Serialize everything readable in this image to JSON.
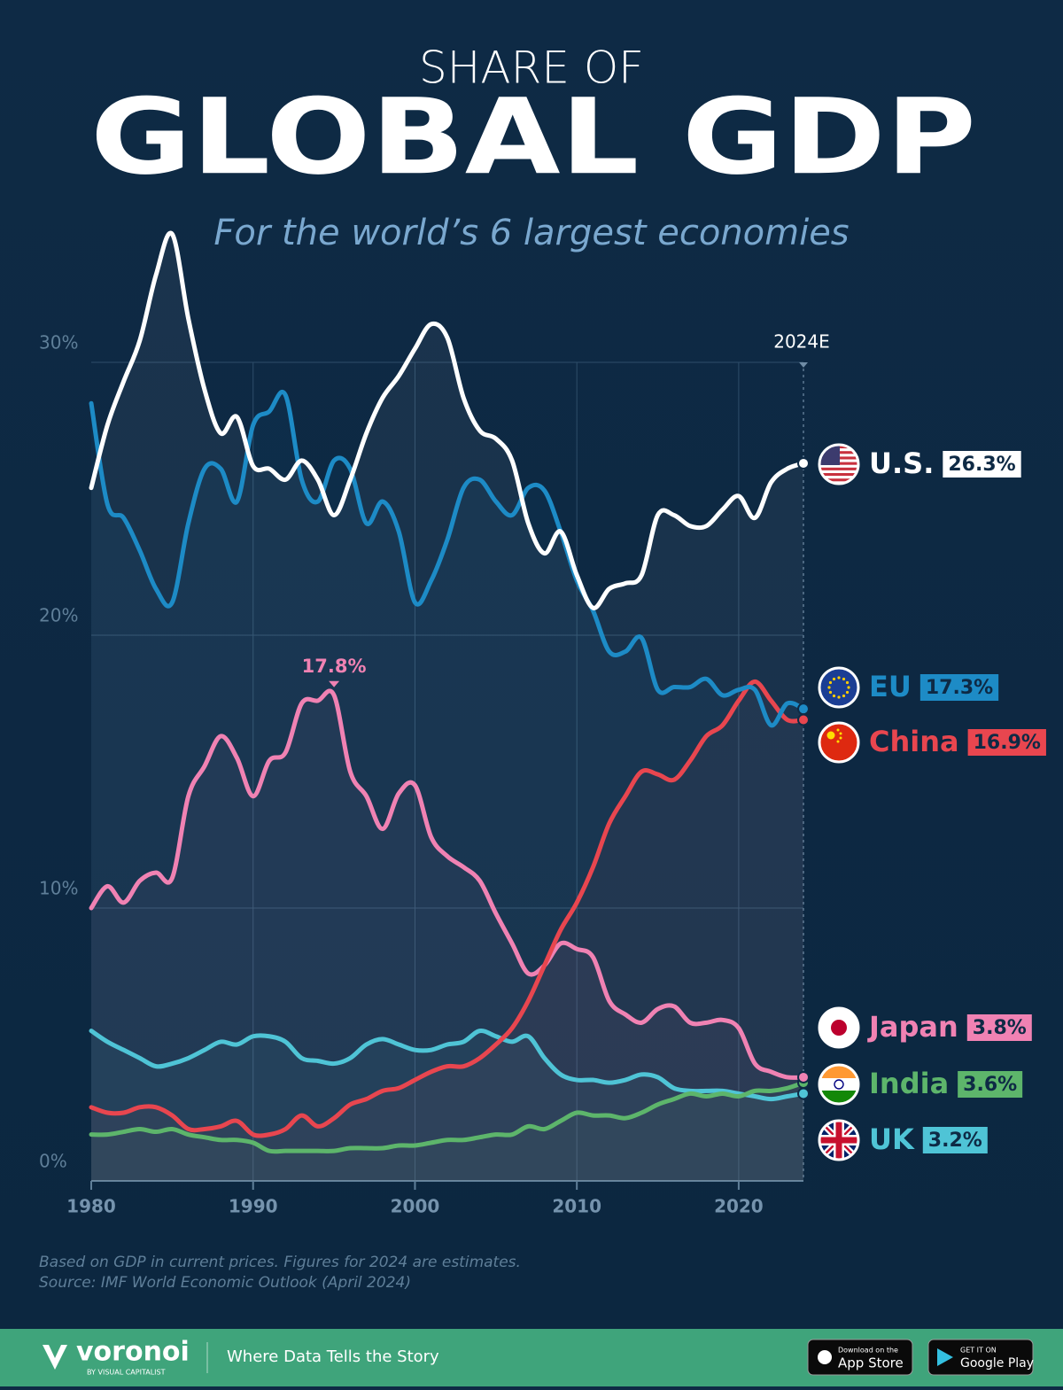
{
  "chart_data": {
    "type": "line",
    "title_top": "SHARE OF",
    "title": "GLOBAL GDP",
    "subtitle": "For the world’s 6 largest economies",
    "x": [
      1980,
      1981,
      1982,
      1983,
      1984,
      1985,
      1986,
      1987,
      1988,
      1989,
      1990,
      1991,
      1992,
      1993,
      1994,
      1995,
      1996,
      1997,
      1998,
      1999,
      2000,
      2001,
      2002,
      2003,
      2004,
      2005,
      2006,
      2007,
      2008,
      2009,
      2010,
      2011,
      2012,
      2013,
      2014,
      2015,
      2016,
      2017,
      2018,
      2019,
      2020,
      2021,
      2022,
      2023,
      2024
    ],
    "xlim": [
      1980,
      2024
    ],
    "xticks": [
      1980,
      1990,
      2000,
      2010,
      2020
    ],
    "ylim": [
      0,
      30
    ],
    "yticks": [
      {
        "value": 0,
        "label": "0%"
      },
      {
        "value": 10,
        "label": "10%"
      },
      {
        "value": 20,
        "label": "20%"
      },
      {
        "value": 30,
        "label": "30%"
      }
    ],
    "grid": true,
    "annotations": [
      {
        "x": 2024,
        "text": "2024E"
      }
    ],
    "series": [
      {
        "name": "U.S.",
        "color": "#ffffff",
        "values": [
          25.4,
          27.7,
          29.3,
          30.8,
          33.2,
          34.7,
          31.6,
          29.0,
          27.4,
          28.0,
          26.2,
          26.1,
          25.7,
          26.4,
          25.7,
          24.4,
          25.7,
          27.4,
          28.7,
          29.5,
          30.5,
          31.4,
          30.9,
          28.7,
          27.5,
          27.2,
          26.4,
          24.1,
          23.0,
          23.8,
          22.2,
          21.0,
          21.7,
          21.9,
          22.2,
          24.4,
          24.4,
          24.0,
          24.0,
          24.6,
          25.1,
          24.3,
          25.6,
          26.1,
          26.3
        ],
        "value_labels": [
          null,
          null,
          null,
          null,
          null,
          null,
          null,
          null,
          null,
          null,
          null,
          null,
          null,
          null,
          null,
          null,
          null,
          null,
          null,
          null,
          null,
          null,
          null,
          null,
          null,
          null,
          null,
          null,
          null,
          null,
          null,
          null,
          null,
          null,
          null,
          null,
          null,
          null,
          null,
          null,
          null,
          null,
          null,
          null,
          "26.3%"
        ]
      },
      {
        "name": "EU",
        "color": "#1d8bc6",
        "values": [
          28.5,
          24.8,
          24.3,
          23.1,
          21.7,
          21.2,
          24.1,
          26.1,
          26.1,
          24.9,
          27.7,
          28.2,
          28.8,
          25.7,
          24.9,
          26.4,
          26.1,
          24.1,
          24.9,
          23.8,
          21.2,
          22.0,
          23.5,
          25.4,
          25.7,
          24.9,
          24.4,
          25.4,
          25.3,
          23.8,
          22.0,
          20.9,
          19.4,
          19.4,
          19.9,
          18.0,
          18.1,
          18.1,
          18.4,
          17.8,
          18.0,
          18.0,
          16.7,
          17.5,
          17.3
        ],
        "value_labels": [
          null,
          null,
          null,
          null,
          null,
          null,
          null,
          null,
          null,
          null,
          null,
          null,
          null,
          null,
          null,
          null,
          null,
          null,
          null,
          null,
          null,
          null,
          null,
          null,
          null,
          null,
          null,
          null,
          null,
          null,
          null,
          null,
          null,
          null,
          null,
          null,
          null,
          null,
          null,
          null,
          null,
          null,
          null,
          null,
          "17.3%"
        ]
      },
      {
        "name": "China",
        "color": "#e8464f",
        "values": [
          2.7,
          2.5,
          2.5,
          2.7,
          2.7,
          2.4,
          1.9,
          1.9,
          2.0,
          2.2,
          1.7,
          1.7,
          1.9,
          2.4,
          2.0,
          2.3,
          2.8,
          3.0,
          3.3,
          3.4,
          3.7,
          4.0,
          4.2,
          4.2,
          4.5,
          5.0,
          5.6,
          6.6,
          7.9,
          9.2,
          10.2,
          11.5,
          13.1,
          14.1,
          15.0,
          14.9,
          14.7,
          15.4,
          16.3,
          16.7,
          17.6,
          18.3,
          17.6,
          16.9,
          16.9
        ],
        "value_labels": [
          null,
          null,
          null,
          null,
          null,
          null,
          null,
          null,
          null,
          null,
          null,
          null,
          null,
          null,
          null,
          null,
          null,
          null,
          null,
          null,
          null,
          null,
          null,
          null,
          null,
          null,
          null,
          null,
          null,
          null,
          null,
          null,
          null,
          null,
          null,
          null,
          null,
          null,
          null,
          null,
          null,
          null,
          null,
          null,
          "16.9%"
        ]
      },
      {
        "name": "Japan",
        "color": "#f082b3",
        "values": [
          10.0,
          10.8,
          10.2,
          11.0,
          11.3,
          11.1,
          14.1,
          15.2,
          16.3,
          15.5,
          14.1,
          15.4,
          15.7,
          17.5,
          17.6,
          17.8,
          15.0,
          14.1,
          12.9,
          14.2,
          14.5,
          12.6,
          11.9,
          11.5,
          11.0,
          9.8,
          8.7,
          7.6,
          7.9,
          8.7,
          8.5,
          8.2,
          6.6,
          6.1,
          5.8,
          6.3,
          6.4,
          5.8,
          5.8,
          5.9,
          5.6,
          4.3,
          4.0,
          3.8,
          3.8
        ],
        "value_labels": [
          null,
          null,
          null,
          null,
          null,
          null,
          null,
          null,
          null,
          null,
          null,
          null,
          null,
          null,
          null,
          "17.8%",
          null,
          null,
          null,
          null,
          null,
          null,
          null,
          null,
          null,
          null,
          null,
          null,
          null,
          null,
          null,
          null,
          null,
          null,
          null,
          null,
          null,
          null,
          null,
          null,
          null,
          null,
          null,
          null,
          "3.8%"
        ]
      },
      {
        "name": "India",
        "color": "#5db56b",
        "values": [
          1.7,
          1.7,
          1.8,
          1.9,
          1.8,
          1.9,
          1.7,
          1.6,
          1.5,
          1.5,
          1.4,
          1.1,
          1.1,
          1.1,
          1.1,
          1.1,
          1.2,
          1.2,
          1.2,
          1.3,
          1.3,
          1.4,
          1.5,
          1.5,
          1.6,
          1.7,
          1.7,
          2.0,
          1.9,
          2.2,
          2.5,
          2.4,
          2.4,
          2.3,
          2.5,
          2.8,
          3.0,
          3.2,
          3.1,
          3.2,
          3.1,
          3.3,
          3.3,
          3.4,
          3.6
        ],
        "value_labels": [
          null,
          null,
          null,
          null,
          null,
          null,
          null,
          null,
          null,
          null,
          null,
          null,
          null,
          null,
          null,
          null,
          null,
          null,
          null,
          null,
          null,
          null,
          null,
          null,
          null,
          null,
          null,
          null,
          null,
          null,
          null,
          null,
          null,
          null,
          null,
          null,
          null,
          null,
          null,
          null,
          null,
          null,
          null,
          null,
          "3.6%"
        ]
      },
      {
        "name": "UK",
        "color": "#4fc4d6",
        "values": [
          5.5,
          5.1,
          4.8,
          4.5,
          4.2,
          4.3,
          4.5,
          4.8,
          5.1,
          5.0,
          5.3,
          5.3,
          5.1,
          4.5,
          4.4,
          4.3,
          4.5,
          5.0,
          5.2,
          5.0,
          4.8,
          4.8,
          5.0,
          5.1,
          5.5,
          5.3,
          5.1,
          5.3,
          4.5,
          3.9,
          3.7,
          3.7,
          3.6,
          3.7,
          3.9,
          3.8,
          3.4,
          3.3,
          3.3,
          3.3,
          3.2,
          3.1,
          3.0,
          3.1,
          3.2
        ],
        "value_labels": [
          null,
          null,
          null,
          null,
          null,
          null,
          null,
          null,
          null,
          null,
          null,
          null,
          null,
          null,
          null,
          null,
          null,
          null,
          null,
          null,
          null,
          null,
          null,
          null,
          null,
          null,
          null,
          null,
          null,
          null,
          null,
          null,
          null,
          null,
          null,
          null,
          null,
          null,
          null,
          null,
          null,
          null,
          null,
          null,
          "3.2%"
        ]
      }
    ],
    "notes": [
      "Based on GDP in current prices. Figures for 2024 are estimates.",
      "Source: IMF World Economic Outlook (April 2024)"
    ]
  },
  "footer": {
    "brand": "voronoi",
    "brand_sub": "BY VISUAL CAPITALIST",
    "tagline": "Where Data Tells the Story",
    "app_store": {
      "small": "Download on the",
      "big": "App Store"
    },
    "google_play": {
      "small": "GET IT ON",
      "big": "Google Play"
    }
  }
}
